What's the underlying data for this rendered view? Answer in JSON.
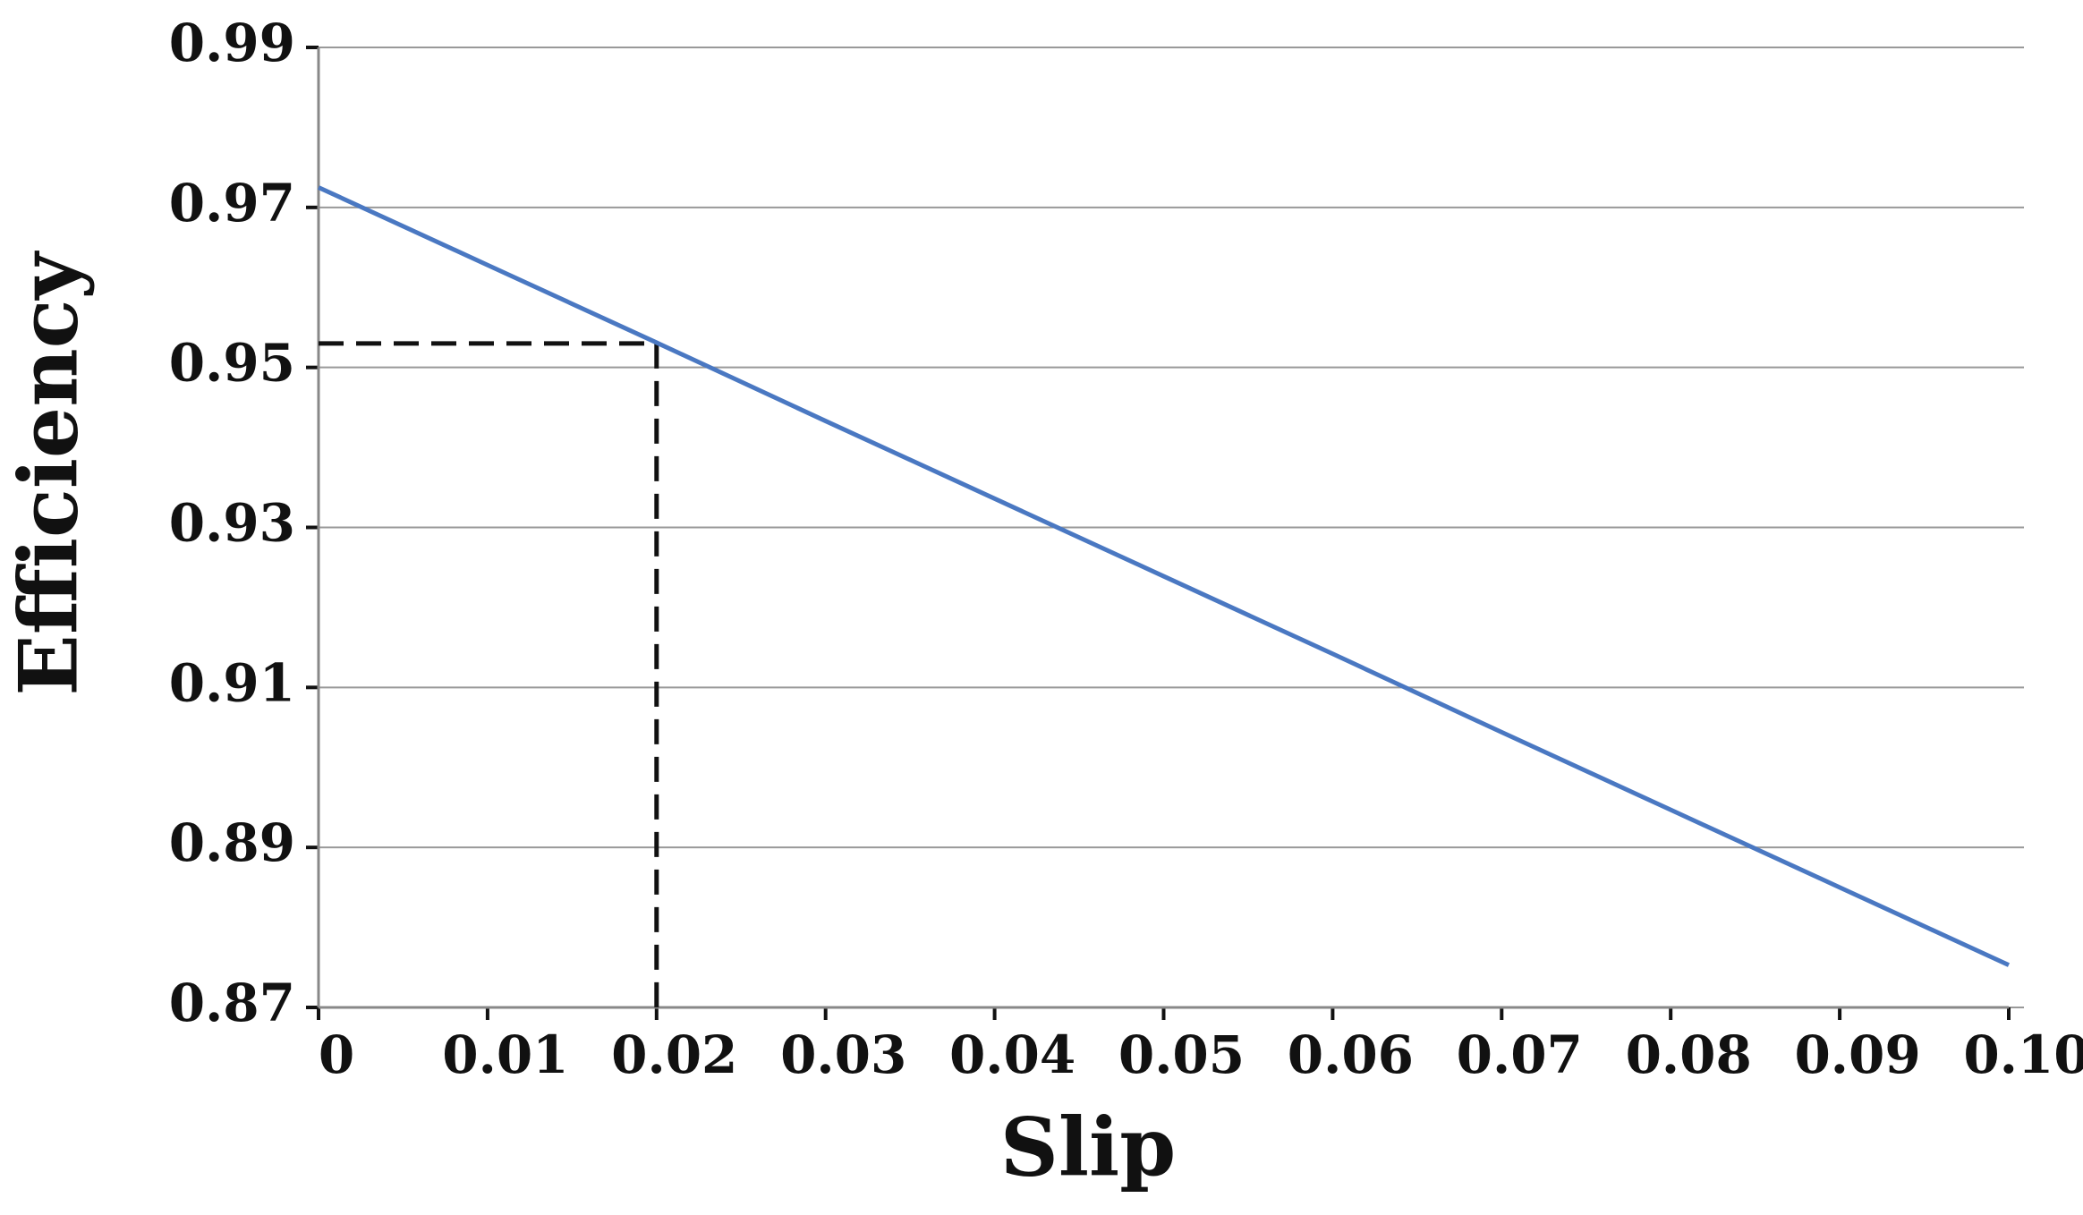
{
  "chart_data": {
    "type": "line",
    "x_label": "Slip",
    "y_label": "Efficiency",
    "x": [
      0,
      0.01,
      0.02,
      0.03,
      0.04,
      0.05,
      0.06,
      0.07,
      0.08,
      0.09,
      0.1
    ],
    "series": [
      {
        "color": "#4a78c2",
        "values": [
          0.9725,
          0.9628,
          0.9531,
          0.9433,
          0.9336,
          0.9239,
          0.9142,
          0.9044,
          0.8947,
          0.885,
          0.8753
        ]
      }
    ],
    "xlim": [
      0,
      0.1
    ],
    "xticks": [
      0,
      0.01,
      0.02,
      0.03,
      0.04,
      0.05,
      0.06,
      0.07,
      0.08,
      0.09,
      {
        "value": 0.1,
        "label": "0.10"
      }
    ],
    "ylim": [
      0.87,
      0.99
    ],
    "yticks": [
      0.87,
      0.89,
      0.91,
      0.93,
      0.95,
      0.97,
      0.99
    ],
    "grid": true,
    "reference": {
      "x": 0.02,
      "y": 0.953
    }
  }
}
